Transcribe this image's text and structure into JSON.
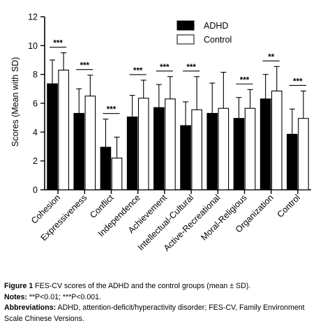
{
  "chart_data": {
    "type": "bar",
    "title": "",
    "xlabel": "",
    "ylabel": "Scores (Mean with SD)",
    "ylim": [
      0,
      12
    ],
    "yticks": [
      "0",
      "2",
      "4",
      "6",
      "8",
      "10",
      "12"
    ],
    "grid": false,
    "legend_position": "top-right",
    "categories": [
      "Cohesion",
      "Expressiveness",
      "Conflict",
      "Independence",
      "Achievement",
      "Intellectual-Cultural",
      "Active-Recreational",
      "Moral-Religious",
      "Organization",
      "Control"
    ],
    "series": [
      {
        "name": "ADHD",
        "color": "#000000",
        "values": [
          7.35,
          5.3,
          2.95,
          5.05,
          5.7,
          4.45,
          5.3,
          4.95,
          6.3,
          3.85
        ],
        "sd": [
          1.65,
          1.7,
          1.95,
          1.5,
          1.6,
          1.65,
          2.1,
          1.45,
          1.7,
          1.75
        ]
      },
      {
        "name": "Control",
        "color": "#ffffff",
        "values": [
          8.3,
          6.5,
          2.2,
          6.35,
          6.3,
          5.55,
          5.65,
          5.65,
          6.85,
          4.95
        ],
        "sd": [
          1.2,
          1.45,
          1.45,
          1.25,
          1.55,
          2.3,
          2.5,
          1.3,
          1.7,
          1.9
        ]
      }
    ],
    "significance": [
      "***",
      "***",
      "***",
      "***",
      "***",
      "***",
      "",
      "***",
      "**",
      "***"
    ]
  },
  "caption": {
    "figure_label": "Figure 1",
    "figure_text": "FES-CV scores of the ADHD and the control groups (mean ± SD).",
    "notes_label": "Notes:",
    "notes_text": "**P<0.01; ***P<0.001.",
    "abbrev_label": "Abbreviations:",
    "abbrev_text": "ADHD, attention-deficit/hyperactivity disorder; FES-CV, Family Environment Scale Chinese Versions."
  }
}
